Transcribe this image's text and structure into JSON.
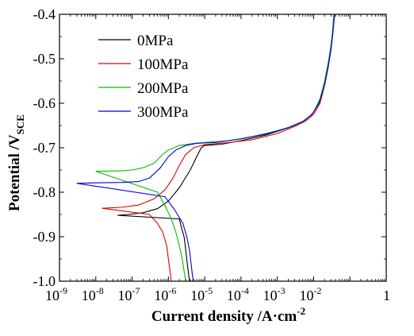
{
  "chart_data": {
    "type": "line",
    "xlabel": "Current density /A·cm",
    "xlabel_sup": "-2",
    "ylabel": "Potential /V",
    "ylabel_sub": "SCE",
    "xscale": "log",
    "xlim": [
      1e-09,
      1
    ],
    "ylim": [
      -1.0,
      -0.4
    ],
    "x_tick_exponents": [
      "-9",
      "-8",
      "-7",
      "-6",
      "-5",
      "-4",
      "-3",
      "-2"
    ],
    "x_tick_last": "1",
    "x_tick_base": "10",
    "y_ticks": [
      "-1.0",
      "-0.9",
      "-0.8",
      "-0.7",
      "-0.6",
      "-0.5",
      "-0.4"
    ],
    "y_tick_values": [
      -1.0,
      -0.9,
      -0.8,
      -0.7,
      -0.6,
      -0.5,
      -0.4
    ],
    "grid": false,
    "legend": "top-left",
    "series": [
      {
        "name": "0MPa",
        "color": "#000000",
        "cathodic": [
          [
            2e-06,
            -0.86
          ],
          [
            2.3e-06,
            -0.88
          ],
          [
            2.7e-06,
            -0.9
          ],
          [
            3e-06,
            -0.93
          ],
          [
            3.3e-06,
            -0.96
          ],
          [
            3.8e-06,
            -1.0
          ]
        ],
        "anodic": [
          [
            4e-08,
            -0.852
          ],
          [
            8e-08,
            -0.85
          ],
          [
            2e-07,
            -0.846
          ],
          [
            5e-07,
            -0.837
          ],
          [
            1e-06,
            -0.82
          ],
          [
            2e-06,
            -0.79
          ],
          [
            4e-06,
            -0.75
          ],
          [
            6e-06,
            -0.72
          ],
          [
            8e-06,
            -0.7
          ],
          [
            1e-05,
            -0.695
          ],
          [
            3e-05,
            -0.692
          ],
          [
            0.0001,
            -0.684
          ],
          [
            0.0005,
            -0.671
          ],
          [
            0.002,
            -0.655
          ],
          [
            0.005,
            -0.641
          ],
          [
            0.009,
            -0.625
          ],
          [
            0.014,
            -0.6
          ],
          [
            0.02,
            -0.56
          ],
          [
            0.025,
            -0.52
          ],
          [
            0.03,
            -0.48
          ],
          [
            0.034,
            -0.44
          ],
          [
            0.037,
            -0.4
          ]
        ]
      },
      {
        "name": "100MPa",
        "color": "#e00000",
        "cathodic": [
          [
            3e-07,
            -0.85
          ],
          [
            5e-07,
            -0.87
          ],
          [
            7e-07,
            -0.89
          ],
          [
            9e-07,
            -0.92
          ],
          [
            1e-06,
            -0.95
          ],
          [
            1.2e-06,
            -1.0
          ]
        ],
        "anodic": [
          [
            1.5e-08,
            -0.836
          ],
          [
            5e-08,
            -0.834
          ],
          [
            1.5e-07,
            -0.829
          ],
          [
            4e-07,
            -0.815
          ],
          [
            8e-07,
            -0.795
          ],
          [
            1.3e-06,
            -0.77
          ],
          [
            2e-06,
            -0.74
          ],
          [
            3e-06,
            -0.715
          ],
          [
            5e-06,
            -0.7
          ],
          [
            1e-05,
            -0.693
          ],
          [
            5e-05,
            -0.688
          ],
          [
            0.0002,
            -0.682
          ],
          [
            0.001,
            -0.668
          ],
          [
            0.003,
            -0.652
          ],
          [
            0.006,
            -0.64
          ],
          [
            0.01,
            -0.625
          ],
          [
            0.015,
            -0.6
          ],
          [
            0.02,
            -0.56
          ],
          [
            0.025,
            -0.52
          ],
          [
            0.029,
            -0.48
          ],
          [
            0.033,
            -0.44
          ],
          [
            0.036,
            -0.4
          ]
        ]
      },
      {
        "name": "200MPa",
        "color": "#00c000",
        "cathodic": [
          [
            5e-07,
            -0.8
          ],
          [
            8e-07,
            -0.83
          ],
          [
            1.2e-06,
            -0.86
          ],
          [
            1.6e-06,
            -0.89
          ],
          [
            2e-06,
            -0.92
          ],
          [
            2.4e-06,
            -0.95
          ],
          [
            3e-06,
            -1.0
          ]
        ],
        "anodic": [
          [
            1e-08,
            -0.753
          ],
          [
            5e-08,
            -0.752
          ],
          [
            1e-07,
            -0.75
          ],
          [
            2e-07,
            -0.745
          ],
          [
            4e-07,
            -0.735
          ],
          [
            7e-07,
            -0.715
          ],
          [
            1e-06,
            -0.705
          ],
          [
            2e-06,
            -0.695
          ],
          [
            5e-06,
            -0.69
          ],
          [
            1e-05,
            -0.688
          ],
          [
            5e-05,
            -0.684
          ],
          [
            0.0002,
            -0.675
          ],
          [
            0.001,
            -0.662
          ],
          [
            0.003,
            -0.65
          ],
          [
            0.006,
            -0.638
          ],
          [
            0.01,
            -0.62
          ],
          [
            0.015,
            -0.59
          ],
          [
            0.02,
            -0.55
          ],
          [
            0.025,
            -0.51
          ],
          [
            0.03,
            -0.47
          ],
          [
            0.034,
            -0.43
          ],
          [
            0.037,
            -0.4
          ]
        ]
      },
      {
        "name": "300MPa",
        "color": "#0000e0",
        "cathodic": [
          [
            8e-07,
            -0.81
          ],
          [
            1.5e-06,
            -0.84
          ],
          [
            2.5e-06,
            -0.87
          ],
          [
            3.2e-06,
            -0.9
          ],
          [
            3.8e-06,
            -0.93
          ],
          [
            4.2e-06,
            -0.96
          ],
          [
            4.8e-06,
            -1.0
          ]
        ],
        "anodic": [
          [
            3e-09,
            -0.78
          ],
          [
            1e-08,
            -0.779
          ],
          [
            5e-08,
            -0.778
          ],
          [
            1.5e-07,
            -0.776
          ],
          [
            3e-07,
            -0.768
          ],
          [
            6e-07,
            -0.745
          ],
          [
            1e-06,
            -0.72
          ],
          [
            1.6e-06,
            -0.705
          ],
          [
            3e-06,
            -0.695
          ],
          [
            6e-06,
            -0.69
          ],
          [
            2e-05,
            -0.688
          ],
          [
            0.0001,
            -0.68
          ],
          [
            0.0005,
            -0.669
          ],
          [
            0.002,
            -0.655
          ],
          [
            0.005,
            -0.641
          ],
          [
            0.009,
            -0.625
          ],
          [
            0.014,
            -0.6
          ],
          [
            0.02,
            -0.56
          ],
          [
            0.026,
            -0.51
          ],
          [
            0.031,
            -0.47
          ],
          [
            0.035,
            -0.43
          ],
          [
            0.038,
            -0.4
          ]
        ]
      }
    ]
  }
}
